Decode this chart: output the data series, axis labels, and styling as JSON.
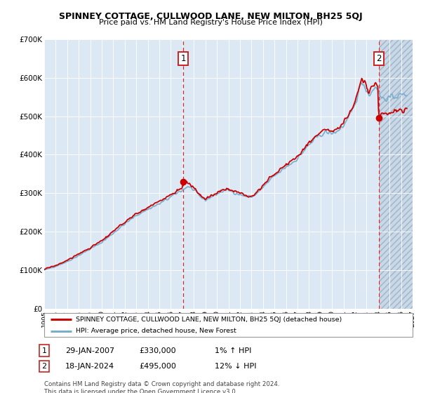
{
  "title": "SPINNEY COTTAGE, CULLWOOD LANE, NEW MILTON, BH25 5QJ",
  "subtitle": "Price paid vs. HM Land Registry's House Price Index (HPI)",
  "legend_entry1": "SPINNEY COTTAGE, CULLWOOD LANE, NEW MILTON, BH25 5QJ (detached house)",
  "legend_entry2": "HPI: Average price, detached house, New Forest",
  "sale1_date": "29-JAN-2007",
  "sale1_price": 330000,
  "sale1_hpi": "1% ↑ HPI",
  "sale2_date": "18-JAN-2024",
  "sale2_price": 495000,
  "sale2_hpi": "12% ↓ HPI",
  "sale1_x": 2007.07,
  "sale2_x": 2024.05,
  "footnote": "Contains HM Land Registry data © Crown copyright and database right 2024.\nThis data is licensed under the Open Government Licence v3.0.",
  "ylim_min": 0,
  "ylim_max": 700000,
  "xlim_min": 1995,
  "xlim_max": 2027,
  "bg_color": "#dce9f5",
  "grid_color": "#ffffff",
  "line_color_red": "#cc0000",
  "line_color_blue": "#7aaecc",
  "point_color": "#cc0000",
  "vline_color": "#dd2222",
  "future_shade_start": 2024.05
}
